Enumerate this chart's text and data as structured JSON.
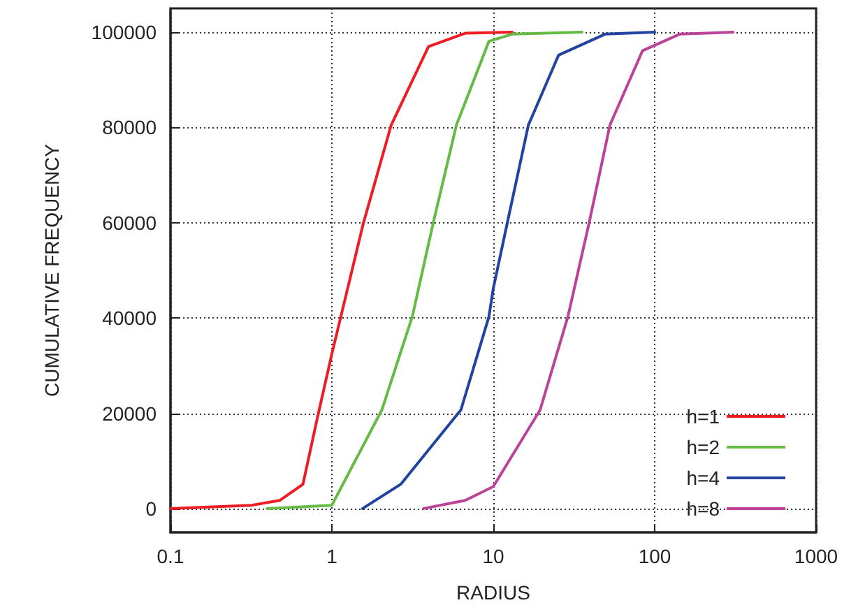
{
  "chart_data": {
    "type": "line",
    "xlabel": "RADIUS",
    "ylabel": "CUMULATIVE FREQUENCY",
    "log": "x",
    "xlim": [
      0.1,
      1000
    ],
    "xticks": [
      0.1,
      1,
      10,
      100,
      1000
    ],
    "ylim": [
      -5000,
      105000
    ],
    "yticks": [
      0,
      20000,
      40000,
      60000,
      80000,
      100000
    ],
    "grid": true,
    "legend": "bottom right",
    "marker": "none",
    "line_style": "solid",
    "series": [
      {
        "name": "h=1",
        "color": "#ee1c25",
        "x": [
          0.1,
          0.319,
          0.475,
          0.662,
          0.81,
          1.0,
          1.567,
          2.33,
          3.97,
          6.74,
          13.1
        ],
        "values": [
          0,
          700,
          1700,
          5100,
          18800,
          32500,
          59900,
          80500,
          97000,
          99800,
          100000
        ]
      },
      {
        "name": "h=2",
        "color": "#66bb44",
        "x": [
          0.397,
          1.0,
          2.04,
          3.15,
          4.24,
          5.91,
          9.4,
          13.1,
          35.4
        ],
        "values": [
          0,
          700,
          20700,
          40300,
          59900,
          80500,
          98100,
          99600,
          100000
        ]
      },
      {
        "name": "h=4",
        "color": "#2244a0",
        "x": [
          1.55,
          2.67,
          6.3,
          9.4,
          10.0,
          12.2,
          16.5,
          25.4,
          49.3,
          100
        ],
        "values": [
          0,
          5100,
          20700,
          40300,
          46200,
          59900,
          80500,
          95200,
          99600,
          100000
        ]
      },
      {
        "name": "h=8",
        "color": "#bb4499",
        "x": [
          3.7,
          6.7,
          10.0,
          19.5,
          29.0,
          39.2,
          52.8,
          84,
          143,
          306
        ],
        "values": [
          0,
          1700,
          4600,
          20700,
          40300,
          59900,
          80500,
          96100,
          99600,
          100000
        ]
      }
    ]
  }
}
